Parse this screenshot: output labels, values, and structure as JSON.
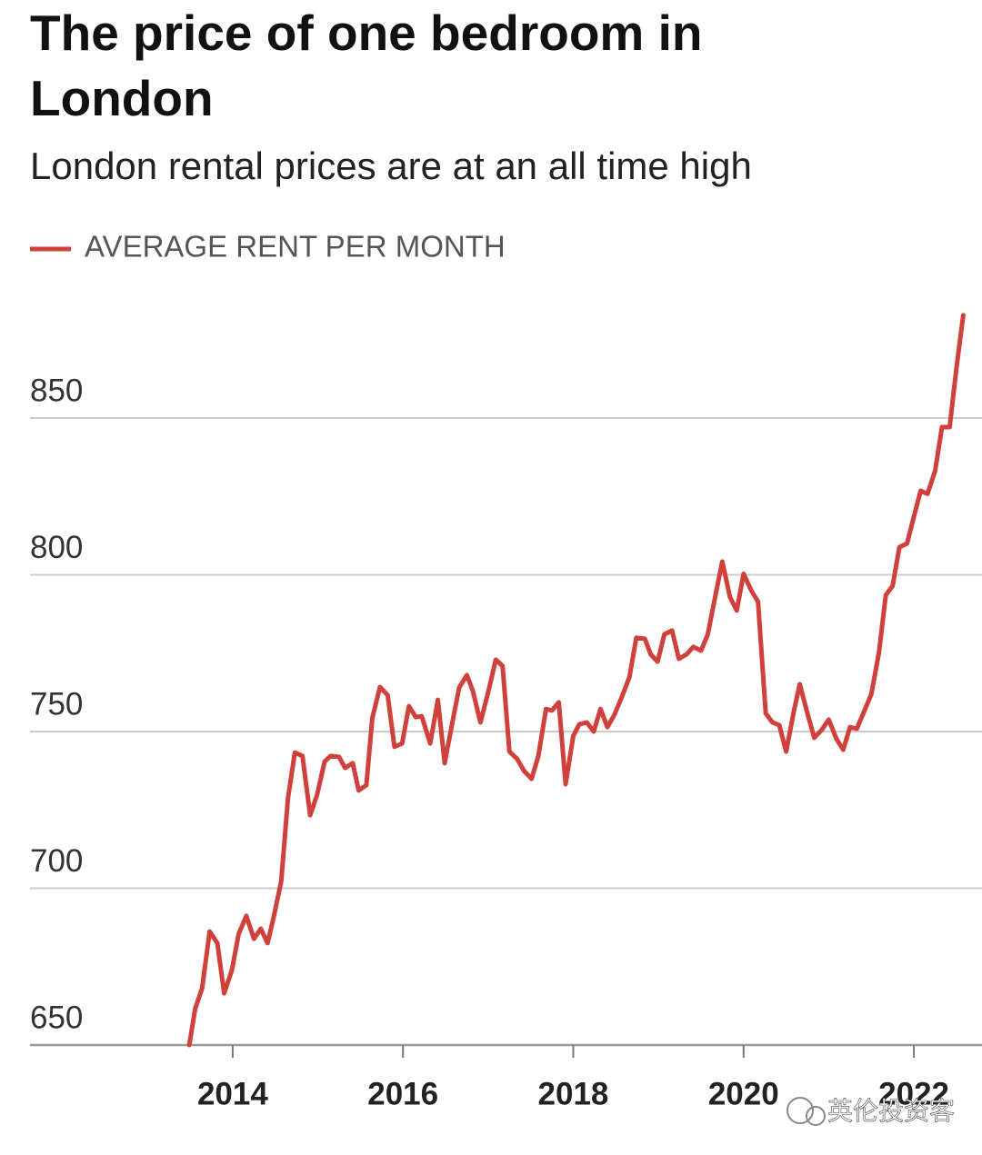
{
  "chart_data": {
    "type": "line",
    "title": "The price of one bedroom in London",
    "subtitle": "London rental prices are at an all time high",
    "watermark": "英伦投资客",
    "xlim": [
      2011.62,
      2022.8
    ],
    "xticks": [
      2014,
      2016,
      2018,
      2020,
      2022
    ],
    "ylim": [
      650,
      885
    ],
    "yticks": [
      650,
      700,
      750,
      800,
      850
    ],
    "grid": true,
    "legend": "top-left",
    "x": [
      2013.49,
      2013.56,
      2013.64,
      2013.73,
      2013.82,
      2013.9,
      2013.99,
      2014.07,
      2014.16,
      2014.25,
      2014.33,
      2014.41,
      2014.48,
      2014.57,
      2014.65,
      2014.73,
      2014.82,
      2014.91,
      2014.99,
      2015.08,
      2015.15,
      2015.25,
      2015.32,
      2015.41,
      2015.48,
      2015.57,
      2015.64,
      2015.73,
      2015.82,
      2015.9,
      2015.99,
      2016.07,
      2016.15,
      2016.22,
      2016.32,
      2016.41,
      2016.49,
      2016.58,
      2016.66,
      2016.75,
      2016.82,
      2016.91,
      2017.01,
      2017.09,
      2017.17,
      2017.25,
      2017.34,
      2017.42,
      2017.51,
      2017.59,
      2017.68,
      2017.75,
      2017.83,
      2017.91,
      2018.0,
      2018.07,
      2018.16,
      2018.24,
      2018.32,
      2018.4,
      2018.48,
      2018.57,
      2018.66,
      2018.74,
      2018.84,
      2018.91,
      2018.99,
      2019.07,
      2019.16,
      2019.24,
      2019.33,
      2019.41,
      2019.5,
      2019.58,
      2019.67,
      2019.75,
      2019.84,
      2019.92,
      2020.0,
      2020.09,
      2020.17,
      2020.26,
      2020.34,
      2020.42,
      2020.5,
      2020.59,
      2020.66,
      2020.75,
      2020.83,
      2020.92,
      2021.0,
      2021.09,
      2021.17,
      2021.25,
      2021.33,
      2021.42,
      2021.5,
      2021.59,
      2021.67,
      2021.75,
      2021.83,
      2021.92,
      2021.99,
      2022.08,
      2022.16,
      2022.25,
      2022.33,
      2022.42,
      2022.5,
      2022.58
    ],
    "series": [
      {
        "name": "AVERAGE RENT PER MONTH",
        "color": "#d0413c",
        "values": [
          650,
          661.6,
          668,
          686.2,
          682.5,
          666.5,
          673.8,
          685.4,
          691.2,
          683.9,
          687.1,
          682.5,
          690.6,
          702.2,
          728.8,
          743.3,
          742.2,
          723.3,
          729.7,
          740.4,
          742.2,
          741.9,
          738.4,
          739.9,
          731.2,
          732.9,
          754.3,
          764.2,
          761.6,
          745.1,
          746.2,
          758.1,
          754.6,
          754.9,
          746.2,
          760.1,
          739.9,
          752.9,
          764,
          768,
          763,
          752.9,
          763.6,
          772.9,
          770.9,
          743.6,
          741.3,
          737.5,
          734.9,
          742.2,
          757.2,
          756.7,
          759.3,
          733.2,
          748.6,
          752.3,
          752.9,
          750,
          757.2,
          751.4,
          755.2,
          761,
          767.4,
          779.9,
          779.6,
          774.6,
          772.3,
          781,
          782.2,
          773.2,
          774.6,
          777,
          775.8,
          781,
          793.5,
          804.2,
          792.9,
          788.6,
          800.3,
          795,
          791.4,
          755.8,
          752.9,
          752,
          743.6,
          756.4,
          765.1,
          755.8,
          748,
          750.6,
          753.8,
          747.7,
          744.2,
          751.4,
          750.9,
          756.7,
          761.9,
          775.2,
          793.5,
          796.4,
          808.8,
          810,
          817.5,
          826.8,
          825.8,
          833.2,
          847.1,
          847.1,
          865.9,
          882.8
        ]
      }
    ]
  }
}
